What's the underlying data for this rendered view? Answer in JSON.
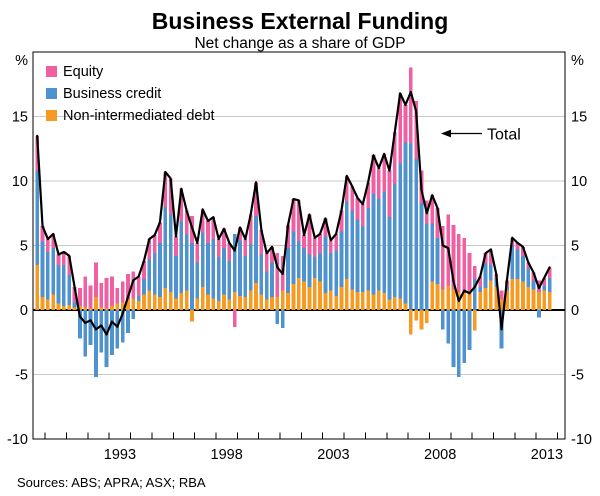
{
  "header": {
    "title": "Business External Funding",
    "subtitle": "Net change as a share of GDP"
  },
  "axes": {
    "left_unit": "%",
    "right_unit": "%",
    "y_ticks": [
      15,
      10,
      5,
      0,
      -5,
      -10
    ],
    "y_gridlines": [
      15,
      10,
      5,
      -5
    ],
    "y_min": -10,
    "y_max": 20,
    "x_year_labels": [
      "1993",
      "1998",
      "2003",
      "2008",
      "2013"
    ],
    "x_first_tick_year": 1990,
    "x_last_tick_year": 2014
  },
  "legend": {
    "items": [
      {
        "label": "Equity",
        "color": "#ef5fa2"
      },
      {
        "label": "Business credit",
        "color": "#4e93cf"
      },
      {
        "label": "Non-intermediated debt",
        "color": "#f79a21"
      }
    ]
  },
  "annotation": {
    "total_label": "Total"
  },
  "footer": {
    "sources": "Sources: ABS; APRA; ASX; RBA"
  },
  "colors": {
    "equity": "#ef5fa2",
    "business_credit": "#4e93cf",
    "non_intermediated_debt": "#f79a21",
    "total_line": "#000000",
    "gridline": "#c9c9c9",
    "axis": "#000000",
    "background": "#ffffff"
  },
  "chart_data": {
    "type": "bar",
    "subtype": "stacked-bar-with-total-line",
    "title": "Business External Funding",
    "subtitle": "Net change as a share of GDP",
    "ylabel": "%",
    "ylim": [
      -10,
      20
    ],
    "grid": true,
    "legend_position": "top-left-inside",
    "x": [
      "1989Q3",
      "1989Q4",
      "1990Q1",
      "1990Q2",
      "1990Q3",
      "1990Q4",
      "1991Q1",
      "1991Q2",
      "1991Q3",
      "1991Q4",
      "1992Q1",
      "1992Q2",
      "1992Q3",
      "1992Q4",
      "1993Q1",
      "1993Q2",
      "1993Q3",
      "1993Q4",
      "1994Q1",
      "1994Q2",
      "1994Q3",
      "1994Q4",
      "1995Q1",
      "1995Q2",
      "1995Q3",
      "1995Q4",
      "1996Q1",
      "1996Q2",
      "1996Q3",
      "1996Q4",
      "1997Q1",
      "1997Q2",
      "1997Q3",
      "1997Q4",
      "1998Q1",
      "1998Q2",
      "1998Q3",
      "1998Q4",
      "1999Q1",
      "1999Q2",
      "1999Q3",
      "1999Q4",
      "2000Q1",
      "2000Q2",
      "2000Q3",
      "2000Q4",
      "2001Q1",
      "2001Q2",
      "2001Q3",
      "2001Q4",
      "2002Q1",
      "2002Q2",
      "2002Q3",
      "2002Q4",
      "2003Q1",
      "2003Q2",
      "2003Q3",
      "2003Q4",
      "2004Q1",
      "2004Q2",
      "2004Q3",
      "2004Q4",
      "2005Q1",
      "2005Q2",
      "2005Q3",
      "2005Q4",
      "2006Q1",
      "2006Q2",
      "2006Q3",
      "2006Q4",
      "2007Q1",
      "2007Q2",
      "2007Q3",
      "2007Q4",
      "2008Q1",
      "2008Q2",
      "2008Q3",
      "2008Q4",
      "2009Q1",
      "2009Q2",
      "2009Q3",
      "2009Q4",
      "2010Q1",
      "2010Q2",
      "2010Q3",
      "2010Q4",
      "2011Q1",
      "2011Q2",
      "2011Q3",
      "2011Q4",
      "2012Q1",
      "2012Q2",
      "2012Q3",
      "2012Q4",
      "2013Q1",
      "2013Q2",
      "2013Q3"
    ],
    "series": [
      {
        "name": "Non-intermediated debt",
        "color": "#f79a21",
        "stack_order": 1,
        "values": [
          3.5,
          1.0,
          0.8,
          1.2,
          0.5,
          0.3,
          0.4,
          0.2,
          0.3,
          0.2,
          0.1,
          1.0,
          0.2,
          0.1,
          0.3,
          0.5,
          0.6,
          0.8,
          0.9,
          0.7,
          1.2,
          1.5,
          1.2,
          1.0,
          1.7,
          1.4,
          0.9,
          1.3,
          1.5,
          -0.9,
          0.9,
          1.8,
          1.2,
          0.9,
          0.7,
          1.2,
          0.8,
          1.4,
          1.1,
          1.0,
          1.5,
          2.1,
          1.2,
          0.8,
          1.0,
          1.0,
          1.5,
          1.3,
          2.0,
          2.5,
          2.2,
          1.8,
          2.5,
          2.2,
          1.3,
          1.5,
          1.1,
          1.8,
          2.4,
          1.6,
          1.4,
          1.4,
          1.5,
          1.2,
          1.5,
          1.3,
          0.8,
          1.0,
          0.9,
          0.5,
          -1.9,
          -0.8,
          -1.5,
          -1.0,
          2.2,
          2.0,
          1.6,
          1.9,
          1.6,
          1.4,
          1.3,
          1.5,
          -1.6,
          1.4,
          1.7,
          2.3,
          1.8,
          0.8,
          1.5,
          2.4,
          2.4,
          2.2,
          1.8,
          1.6,
          1.4,
          1.5,
          1.4
        ]
      },
      {
        "name": "Business credit",
        "color": "#4e93cf",
        "stack_order": 2,
        "values": [
          7.3,
          4.3,
          3.7,
          3.6,
          3.0,
          3.2,
          2.3,
          0.4,
          -2.2,
          -3.6,
          -2.7,
          -5.2,
          -3.3,
          -4.4,
          -3.5,
          -3.0,
          -2.5,
          -1.8,
          -0.7,
          0.4,
          1.2,
          2.4,
          3.2,
          4.2,
          6.3,
          6.0,
          3.3,
          5.6,
          4.4,
          5.2,
          2.8,
          4.2,
          4.0,
          4.6,
          3.4,
          3.6,
          3.0,
          4.5,
          4.3,
          3.2,
          3.6,
          5.2,
          3.1,
          2.2,
          2.7,
          -1.1,
          -1.4,
          3.5,
          4.1,
          2.8,
          2.6,
          2.5,
          1.6,
          2.2,
          4.4,
          2.9,
          3.5,
          4.3,
          6.0,
          6.1,
          5.6,
          5.1,
          6.4,
          7.8,
          7.1,
          7.9,
          6.4,
          8.8,
          10.5,
          12.5,
          12.9,
          11.7,
          8.3,
          6.7,
          4.5,
          3.6,
          -1.5,
          -2.6,
          -4.4,
          -5.2,
          -4.1,
          -3.1,
          2.4,
          0.4,
          1.9,
          1.2,
          0.6,
          -3.0,
          0.3,
          2.6,
          2.3,
          2.0,
          1.4,
          0.7,
          -0.6,
          0.4,
          1.1
        ]
      },
      {
        "name": "Equity",
        "color": "#ef5fa2",
        "stack_order": 3,
        "values": [
          2.7,
          1.2,
          1.0,
          1.1,
          0.8,
          1.0,
          1.5,
          1.2,
          1.4,
          2.4,
          1.8,
          2.7,
          1.9,
          2.4,
          2.3,
          1.2,
          1.6,
          2.0,
          2.1,
          1.5,
          1.4,
          1.6,
          1.4,
          1.6,
          2.7,
          2.8,
          1.5,
          2.5,
          1.8,
          2.1,
          1.5,
          1.8,
          1.7,
          1.7,
          1.4,
          1.5,
          1.4,
          -1.3,
          1.0,
          1.3,
          2.3,
          2.6,
          1.9,
          1.4,
          1.2,
          3.4,
          2.7,
          1.8,
          2.5,
          3.2,
          1.0,
          3.1,
          1.5,
          1.5,
          1.4,
          1.0,
          1.3,
          1.6,
          2.0,
          1.9,
          1.7,
          1.7,
          2.0,
          3.0,
          2.4,
          2.9,
          3.6,
          4.0,
          5.4,
          2.9,
          5.9,
          4.5,
          2.5,
          1.8,
          2.2,
          2.3,
          4.9,
          5.5,
          5.0,
          4.5,
          4.3,
          2.9,
          1.0,
          0.8,
          0.8,
          1.2,
          0.4,
          0.7,
          0.5,
          0.6,
          0.5,
          0.7,
          0.5,
          0.6,
          0.9,
          0.6,
          0.8
        ]
      }
    ],
    "total_series": {
      "name": "Total",
      "type": "line",
      "color": "#000000",
      "values": [
        13.5,
        6.5,
        5.5,
        5.9,
        4.3,
        4.5,
        4.2,
        1.8,
        -0.5,
        -1.0,
        -0.8,
        -1.5,
        -1.2,
        -1.9,
        -0.9,
        -1.3,
        -0.3,
        1.0,
        2.3,
        2.6,
        3.8,
        5.5,
        5.8,
        6.8,
        10.7,
        10.2,
        5.7,
        9.4,
        7.7,
        6.4,
        5.2,
        7.8,
        6.9,
        7.2,
        5.5,
        6.3,
        5.2,
        4.6,
        6.4,
        5.5,
        7.4,
        9.9,
        6.2,
        4.4,
        4.9,
        3.3,
        2.8,
        6.6,
        8.6,
        8.5,
        5.8,
        7.4,
        5.6,
        5.9,
        7.1,
        5.4,
        5.9,
        7.7,
        10.4,
        9.6,
        8.7,
        8.2,
        9.9,
        12.0,
        11.0,
        12.1,
        10.8,
        13.8,
        16.8,
        15.9,
        16.9,
        15.4,
        9.3,
        7.5,
        8.9,
        7.9,
        5.0,
        4.8,
        2.2,
        0.7,
        1.5,
        1.3,
        1.8,
        2.6,
        4.4,
        4.7,
        2.8,
        -1.5,
        2.3,
        5.6,
        5.2,
        4.9,
        3.7,
        2.9,
        1.7,
        2.5,
        3.3
      ]
    }
  }
}
